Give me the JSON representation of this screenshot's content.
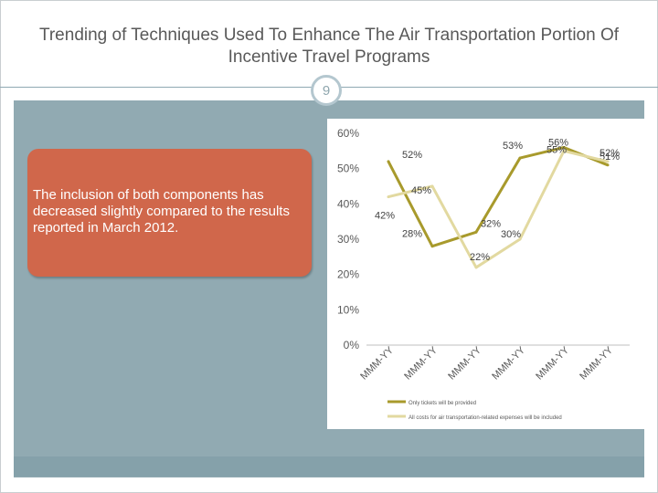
{
  "slide": {
    "title": "Trending of Techniques Used To Enhance The Air Transportation Portion Of Incentive Travel Programs",
    "number": "9",
    "callout_text": "The inclusion of both components has decreased slightly compared to the results reported in March 2012."
  },
  "colors": {
    "accent": "#d0674b",
    "panel": "#91aab2",
    "series_dark": "#a89a2c",
    "series_light": "#e2d9a0"
  },
  "chart_data": {
    "type": "line",
    "title": "",
    "xlabel": "",
    "ylabel": "",
    "ylim": [
      0,
      60
    ],
    "y_ticks": [
      0,
      10,
      20,
      30,
      40,
      50,
      60
    ],
    "y_tick_labels": [
      "0%",
      "10%",
      "20%",
      "30%",
      "40%",
      "50%",
      "60%"
    ],
    "categories": [
      "MMM-YY",
      "MMM-YY",
      "MMM-YY",
      "MMM-YY",
      "MMM-YY",
      "MMM-YY"
    ],
    "series": [
      {
        "name": "Only tickets will be provided",
        "values": [
          52,
          28,
          32,
          53,
          56,
          51
        ],
        "value_labels": [
          "52%",
          "28%",
          "32%",
          "53%",
          "56%",
          "51%"
        ],
        "color": "#a89a2c"
      },
      {
        "name": "All costs for air transportation-related expenses will be included",
        "values": [
          42,
          45,
          22,
          30,
          55,
          52
        ],
        "value_labels": [
          "42%",
          "45%",
          "22%",
          "30%",
          "55%",
          "52%"
        ],
        "color": "#e2d9a0"
      }
    ],
    "legend_position": "bottom",
    "grid": false
  }
}
